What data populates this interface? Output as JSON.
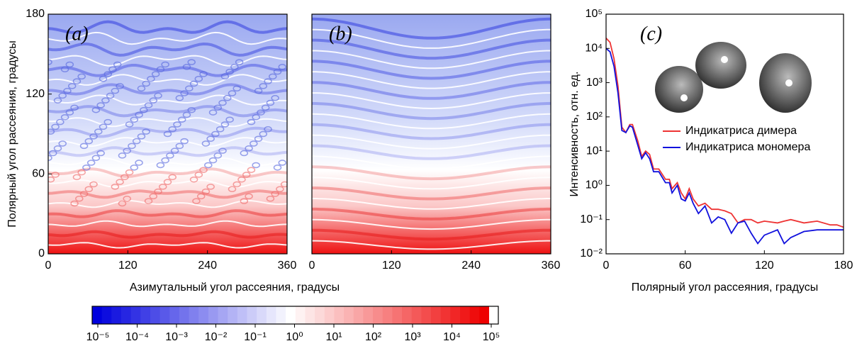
{
  "chart_data": [
    {
      "type": "heatmap",
      "panel_label": "(a)",
      "xlabel": "Азимутальный угол рассеяния, градусы",
      "ylabel": "Полярный угол рассеяния, градусы",
      "xlim": [
        0,
        360
      ],
      "ylim": [
        0,
        180
      ],
      "xticks": [
        0,
        120,
        240,
        360
      ],
      "yticks": [
        0,
        60,
        120,
        180
      ]
    },
    {
      "type": "heatmap",
      "panel_label": "(b)",
      "xlim": [
        0,
        360
      ],
      "ylim": [
        0,
        180
      ],
      "xticks": [
        0,
        120,
        240,
        360
      ]
    },
    {
      "type": "line",
      "panel_label": "(c)",
      "xlabel": "Полярный угол рассеяния, градусы",
      "ylabel": "Интенсивность, отн. ед.",
      "log_y": true,
      "legend": "right",
      "x": [
        0,
        3,
        6,
        9,
        12,
        15,
        18,
        20,
        24,
        27,
        30,
        33,
        36,
        40,
        45,
        48,
        50,
        54,
        57,
        60,
        63,
        66,
        70,
        75,
        80,
        85,
        90,
        95,
        100,
        105,
        110,
        115,
        120,
        130,
        135,
        140,
        150,
        160,
        170,
        175,
        180
      ],
      "series": [
        {
          "name": "Индикатриса димера",
          "color": "#ee3333",
          "values": [
            20000,
            15000,
            5000,
            800,
            50,
            35,
            60,
            60,
            20,
            7,
            10,
            8,
            3,
            3,
            1.5,
            1.5,
            0.8,
            1.2,
            0.6,
            0.4,
            0.8,
            0.4,
            0.25,
            0.3,
            0.2,
            0.2,
            0.18,
            0.15,
            0.08,
            0.1,
            0.1,
            0.08,
            0.09,
            0.08,
            0.09,
            0.1,
            0.08,
            0.09,
            0.07,
            0.07,
            0.06
          ]
        },
        {
          "name": "Индикатриса мономера",
          "color": "#1111dd",
          "values": [
            10000,
            8000,
            3000,
            500,
            40,
            35,
            55,
            50,
            15,
            6,
            9,
            6,
            2.5,
            2.5,
            1.2,
            1.2,
            0.6,
            1,
            0.4,
            0.35,
            0.6,
            0.3,
            0.15,
            0.25,
            0.08,
            0.12,
            0.1,
            0.04,
            0.08,
            0.09,
            0.04,
            0.02,
            0.035,
            0.05,
            0.02,
            0.03,
            0.045,
            0.05,
            0.05,
            0.05,
            0.05
          ]
        }
      ],
      "xlim": [
        0,
        180
      ],
      "ylim": [
        0.01,
        100000
      ],
      "xticks": [
        0,
        60,
        120,
        180
      ],
      "yticks": [
        {
          "value": 0.01,
          "label": "10⁻²"
        },
        {
          "value": 0.1,
          "label": "10⁻¹"
        },
        {
          "value": 1,
          "label": "10⁰"
        },
        {
          "value": 10,
          "label": "10¹"
        },
        {
          "value": 100,
          "label": "10²"
        },
        {
          "value": 1000,
          "label": "10³"
        },
        {
          "value": 10000,
          "label": "10⁴"
        },
        {
          "value": 100000,
          "label": "10⁵"
        }
      ]
    }
  ],
  "colorbar": {
    "lim": [
      1e-05,
      100000
    ],
    "low_color": "#0000dd",
    "mid_color": "#ffffff",
    "high_color": "#ee0000",
    "ticks": [
      {
        "value": 1e-05,
        "label": "10⁻⁵"
      },
      {
        "value": 0.0001,
        "label": "10⁻⁴"
      },
      {
        "value": 0.001,
        "label": "10⁻³"
      },
      {
        "value": 0.01,
        "label": "10⁻²"
      },
      {
        "value": 0.1,
        "label": "10⁻¹"
      },
      {
        "value": 1,
        "label": "10⁰"
      },
      {
        "value": 10,
        "label": "10¹"
      },
      {
        "value": 100,
        "label": "10²"
      },
      {
        "value": 1000,
        "label": "10³"
      },
      {
        "value": 10000,
        "label": "10⁴"
      },
      {
        "value": 100000,
        "label": "10⁵"
      }
    ]
  }
}
